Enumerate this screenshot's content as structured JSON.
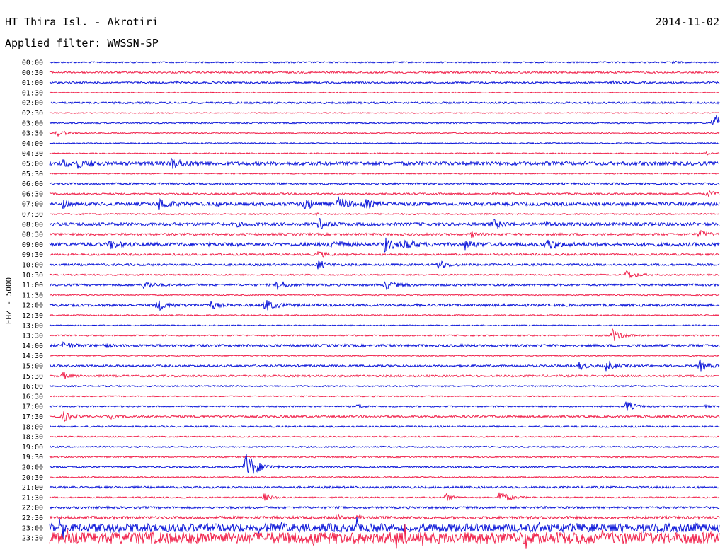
{
  "chart_data": {
    "type": "line",
    "title": "HT Thira Isl. - Akrotiri",
    "date": "2014-11-02",
    "subtitle": "Applied filter: WWSSN-SP",
    "ylabel": "EHZ - 5000",
    "colors": {
      "blue": "#0a14d8",
      "red": "#f0204a"
    },
    "rows": [
      {
        "label": "00:00",
        "color": "blue",
        "base": 1,
        "events": [
          [
            0.93,
            3,
            4
          ]
        ]
      },
      {
        "label": "00:30",
        "color": "red",
        "base": 1.2,
        "events": [
          [
            0.48,
            1,
            3
          ],
          [
            0.53,
            1,
            3
          ],
          [
            0.56,
            1,
            3
          ],
          [
            0.59,
            1,
            3
          ]
        ]
      },
      {
        "label": "01:00",
        "color": "blue",
        "base": 1.2,
        "events": [
          [
            0.08,
            2,
            3
          ],
          [
            0.19,
            1,
            3
          ],
          [
            0.84,
            2,
            3
          ],
          [
            0.93,
            1,
            3
          ],
          [
            0.97,
            1,
            3
          ]
        ]
      },
      {
        "label": "01:30",
        "color": "red",
        "base": 0.6,
        "events": []
      },
      {
        "label": "02:00",
        "color": "blue",
        "base": 1.3,
        "events": []
      },
      {
        "label": "02:30",
        "color": "red",
        "base": 0.7,
        "events": [
          [
            0.92,
            2,
            2
          ]
        ]
      },
      {
        "label": "03:00",
        "color": "blue",
        "base": 0.9,
        "events": [
          [
            0.99,
            14,
            20
          ]
        ]
      },
      {
        "label": "03:30",
        "color": "red",
        "base": 0.8,
        "events": [
          [
            0.01,
            5,
            12
          ]
        ]
      },
      {
        "label": "04:00",
        "color": "blue",
        "base": 0.8,
        "events": []
      },
      {
        "label": "04:30",
        "color": "red",
        "base": 0.8,
        "events": [
          [
            0.98,
            3,
            3
          ]
        ]
      },
      {
        "label": "05:00",
        "color": "blue",
        "base": 2.6,
        "events": [
          [
            0.02,
            5,
            8
          ],
          [
            0.04,
            6,
            9
          ],
          [
            0.18,
            8,
            14
          ],
          [
            0.06,
            3,
            6
          ],
          [
            0.22,
            3,
            5
          ]
        ]
      },
      {
        "label": "05:30",
        "color": "red",
        "base": 0.8,
        "events": []
      },
      {
        "label": "06:00",
        "color": "blue",
        "base": 1.4,
        "events": []
      },
      {
        "label": "06:30",
        "color": "red",
        "base": 1.2,
        "events": [
          [
            0.98,
            6,
            10
          ],
          [
            0.92,
            2,
            4
          ]
        ]
      },
      {
        "label": "07:00",
        "color": "blue",
        "base": 2.3,
        "events": [
          [
            0.02,
            5,
            8
          ],
          [
            0.16,
            9,
            14
          ],
          [
            0.25,
            3,
            5
          ],
          [
            0.38,
            8,
            12
          ],
          [
            0.43,
            9,
            14
          ],
          [
            0.47,
            6,
            10
          ]
        ]
      },
      {
        "label": "07:30",
        "color": "red",
        "base": 1,
        "events": [
          [
            0.4,
            2,
            3
          ]
        ]
      },
      {
        "label": "08:00",
        "color": "blue",
        "base": 2.3,
        "events": [
          [
            0.4,
            8,
            12
          ],
          [
            0.66,
            7,
            12
          ],
          [
            0.74,
            4,
            8
          ],
          [
            0.28,
            2,
            4
          ]
        ]
      },
      {
        "label": "08:30",
        "color": "red",
        "base": 1.6,
        "events": [
          [
            0.63,
            4,
            6
          ],
          [
            0.97,
            5,
            10
          ]
        ]
      },
      {
        "label": "09:00",
        "color": "blue",
        "base": 2.5,
        "events": [
          [
            0.09,
            7,
            9
          ],
          [
            0.42,
            8,
            10
          ],
          [
            0.5,
            9,
            12
          ],
          [
            0.53,
            8,
            10
          ],
          [
            0.62,
            6,
            10
          ],
          [
            0.74,
            9,
            12
          ]
        ]
      },
      {
        "label": "09:30",
        "color": "red",
        "base": 1.4,
        "events": [
          [
            0.4,
            5,
            10
          ]
        ]
      },
      {
        "label": "10:00",
        "color": "blue",
        "base": 1.5,
        "events": [
          [
            0.4,
            7,
            10
          ],
          [
            0.58,
            8,
            10
          ]
        ]
      },
      {
        "label": "10:30",
        "color": "red",
        "base": 1,
        "events": [
          [
            0.86,
            7,
            12
          ]
        ]
      },
      {
        "label": "11:00",
        "color": "blue",
        "base": 1.5,
        "events": [
          [
            0.14,
            6,
            10
          ],
          [
            0.34,
            8,
            10
          ],
          [
            0.5,
            7,
            12
          ]
        ]
      },
      {
        "label": "11:30",
        "color": "red",
        "base": 0.8,
        "events": []
      },
      {
        "label": "12:00",
        "color": "blue",
        "base": 1.8,
        "events": [
          [
            0.16,
            8,
            12
          ],
          [
            0.24,
            6,
            8
          ],
          [
            0.32,
            9,
            12
          ]
        ]
      },
      {
        "label": "12:30",
        "color": "red",
        "base": 0.9,
        "events": []
      },
      {
        "label": "13:00",
        "color": "blue",
        "base": 0.8,
        "events": []
      },
      {
        "label": "13:30",
        "color": "red",
        "base": 1,
        "events": [
          [
            0.84,
            10,
            10
          ]
        ]
      },
      {
        "label": "14:00",
        "color": "blue",
        "base": 1.8,
        "events": [
          [
            0.02,
            7,
            10
          ],
          [
            0.08,
            4,
            6
          ]
        ]
      },
      {
        "label": "14:30",
        "color": "red",
        "base": 0.8,
        "events": []
      },
      {
        "label": "15:00",
        "color": "blue",
        "base": 1.5,
        "events": [
          [
            0.79,
            6,
            8
          ],
          [
            0.83,
            8,
            10
          ],
          [
            0.97,
            8,
            10
          ]
        ]
      },
      {
        "label": "15:30",
        "color": "red",
        "base": 1.4,
        "events": [
          [
            0.02,
            5,
            8
          ]
        ]
      },
      {
        "label": "16:00",
        "color": "blue",
        "base": 1,
        "events": []
      },
      {
        "label": "16:30",
        "color": "red",
        "base": 0.8,
        "events": []
      },
      {
        "label": "17:00",
        "color": "blue",
        "base": 1,
        "events": [
          [
            0.46,
            4,
            6
          ],
          [
            0.86,
            8,
            10
          ],
          [
            0.98,
            3,
            3
          ]
        ]
      },
      {
        "label": "17:30",
        "color": "red",
        "base": 1.5,
        "events": [
          [
            0.02,
            7,
            10
          ],
          [
            0.09,
            3,
            6
          ]
        ]
      },
      {
        "label": "18:00",
        "color": "blue",
        "base": 1.1,
        "events": []
      },
      {
        "label": "18:30",
        "color": "red",
        "base": 0.9,
        "events": []
      },
      {
        "label": "19:00",
        "color": "blue",
        "base": 1,
        "events": []
      },
      {
        "label": "19:30",
        "color": "red",
        "base": 1,
        "events": []
      },
      {
        "label": "20:00",
        "color": "blue",
        "base": 1.2,
        "events": [
          [
            0.29,
            26,
            14
          ]
        ]
      },
      {
        "label": "20:30",
        "color": "red",
        "base": 0.9,
        "events": []
      },
      {
        "label": "21:00",
        "color": "blue",
        "base": 1.4,
        "events": []
      },
      {
        "label": "21:30",
        "color": "red",
        "base": 1,
        "events": [
          [
            0.32,
            6,
            8
          ],
          [
            0.59,
            7,
            8
          ],
          [
            0.67,
            10,
            12
          ]
        ]
      },
      {
        "label": "22:00",
        "color": "blue",
        "base": 1.5,
        "events": []
      },
      {
        "label": "22:30",
        "color": "red",
        "base": 2,
        "events": [
          [
            0.43,
            4,
            5
          ],
          [
            0.46,
            4,
            5
          ]
        ]
      },
      {
        "label": "23:00",
        "color": "blue",
        "base": 6,
        "events": []
      },
      {
        "label": "23:30",
        "color": "red",
        "base": 8,
        "events": []
      }
    ]
  }
}
